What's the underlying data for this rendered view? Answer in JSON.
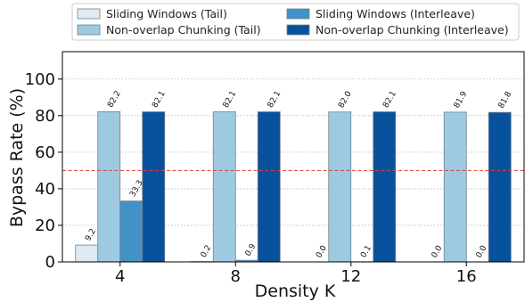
{
  "chart_data": {
    "type": "bar",
    "title": "",
    "xlabel": "Density K",
    "ylabel": "Bypass Rate (%)",
    "categories": [
      "4",
      "8",
      "12",
      "16"
    ],
    "yticks": [
      "0",
      "20",
      "40",
      "60",
      "80",
      "100"
    ],
    "ylim": [
      0,
      115
    ],
    "grid": "horizontal dotted",
    "legend_position": "top-center",
    "reference_line": {
      "y": 50,
      "color": "#e53935",
      "style": "dashed"
    },
    "series": [
      {
        "name": "Sliding Windows (Tail)",
        "color": "#deebf7",
        "values": [
          9.2,
          0.2,
          0.0,
          0.0
        ],
        "labels": [
          "9.2",
          "0.2",
          "0.0",
          "0.0"
        ]
      },
      {
        "name": "Non-overlap Chunking (Tail)",
        "color": "#9ecae1",
        "values": [
          82.2,
          82.1,
          82.0,
          81.9
        ],
        "labels": [
          "82.2",
          "82.1",
          "82.0",
          "81.9"
        ]
      },
      {
        "name": "Sliding Windows (Interleave)",
        "color": "#4292c6",
        "values": [
          33.3,
          0.9,
          0.1,
          0.0
        ],
        "labels": [
          "33.3",
          "0.9",
          "0.1",
          "0.0"
        ]
      },
      {
        "name": "Non-overlap Chunking (Interleave)",
        "color": "#08519c",
        "values": [
          82.1,
          82.1,
          82.1,
          81.8
        ],
        "labels": [
          "82.1",
          "82.1",
          "82.1",
          "81.8"
        ]
      }
    ]
  }
}
